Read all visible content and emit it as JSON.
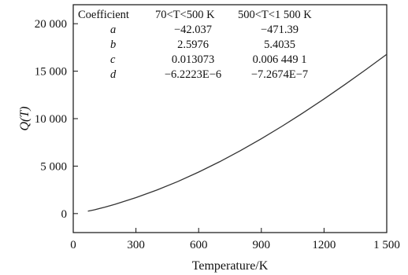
{
  "chart_data": {
    "type": "line",
    "xlabel": "Temperature/K",
    "ylabel": "Q(T)",
    "xlim": [
      0,
      1500
    ],
    "ylim": [
      -2000,
      22000
    ],
    "xticks": [
      {
        "value": 0,
        "label": "0"
      },
      {
        "value": 300,
        "label": "300"
      },
      {
        "value": 600,
        "label": "600"
      },
      {
        "value": 900,
        "label": "900"
      },
      {
        "value": 1200,
        "label": "1200"
      },
      {
        "value": 1500,
        "label": "1 500"
      }
    ],
    "yticks": [
      {
        "value": 0,
        "label": "0"
      },
      {
        "value": 5000,
        "label": "5 000"
      },
      {
        "value": 10000,
        "label": "10 000"
      },
      {
        "value": 15000,
        "label": "15 000"
      },
      {
        "value": 20000,
        "label": "20 000"
      }
    ],
    "grid": false,
    "series": [
      {
        "points": [
          [
            70,
            258
          ],
          [
            100,
            392
          ],
          [
            150,
            673
          ],
          [
            200,
            983
          ],
          [
            300,
            1682
          ],
          [
            400,
            2480
          ],
          [
            500,
            3372
          ],
          [
            600,
            4373
          ],
          [
            700,
            5457
          ],
          [
            800,
            6629
          ],
          [
            900,
            7883
          ],
          [
            1000,
            9213
          ],
          [
            1100,
            10612
          ],
          [
            1200,
            12074
          ],
          [
            1300,
            13593
          ],
          [
            1400,
            15164
          ],
          [
            1500,
            16779
          ]
        ],
        "color": "#333333"
      }
    ],
    "coefficient_table": {
      "header": [
        "Coefficient",
        "70<T<500 K",
        "500<T<1 500 K"
      ],
      "rows": [
        [
          "a",
          "−42.037",
          "−471.39"
        ],
        [
          "b",
          "2.5976",
          "5.4035"
        ],
        [
          "c",
          "0.013073",
          "0.006 449 1"
        ],
        [
          "d",
          "−6.2223E−6",
          "−7.2674E−7"
        ]
      ]
    }
  }
}
